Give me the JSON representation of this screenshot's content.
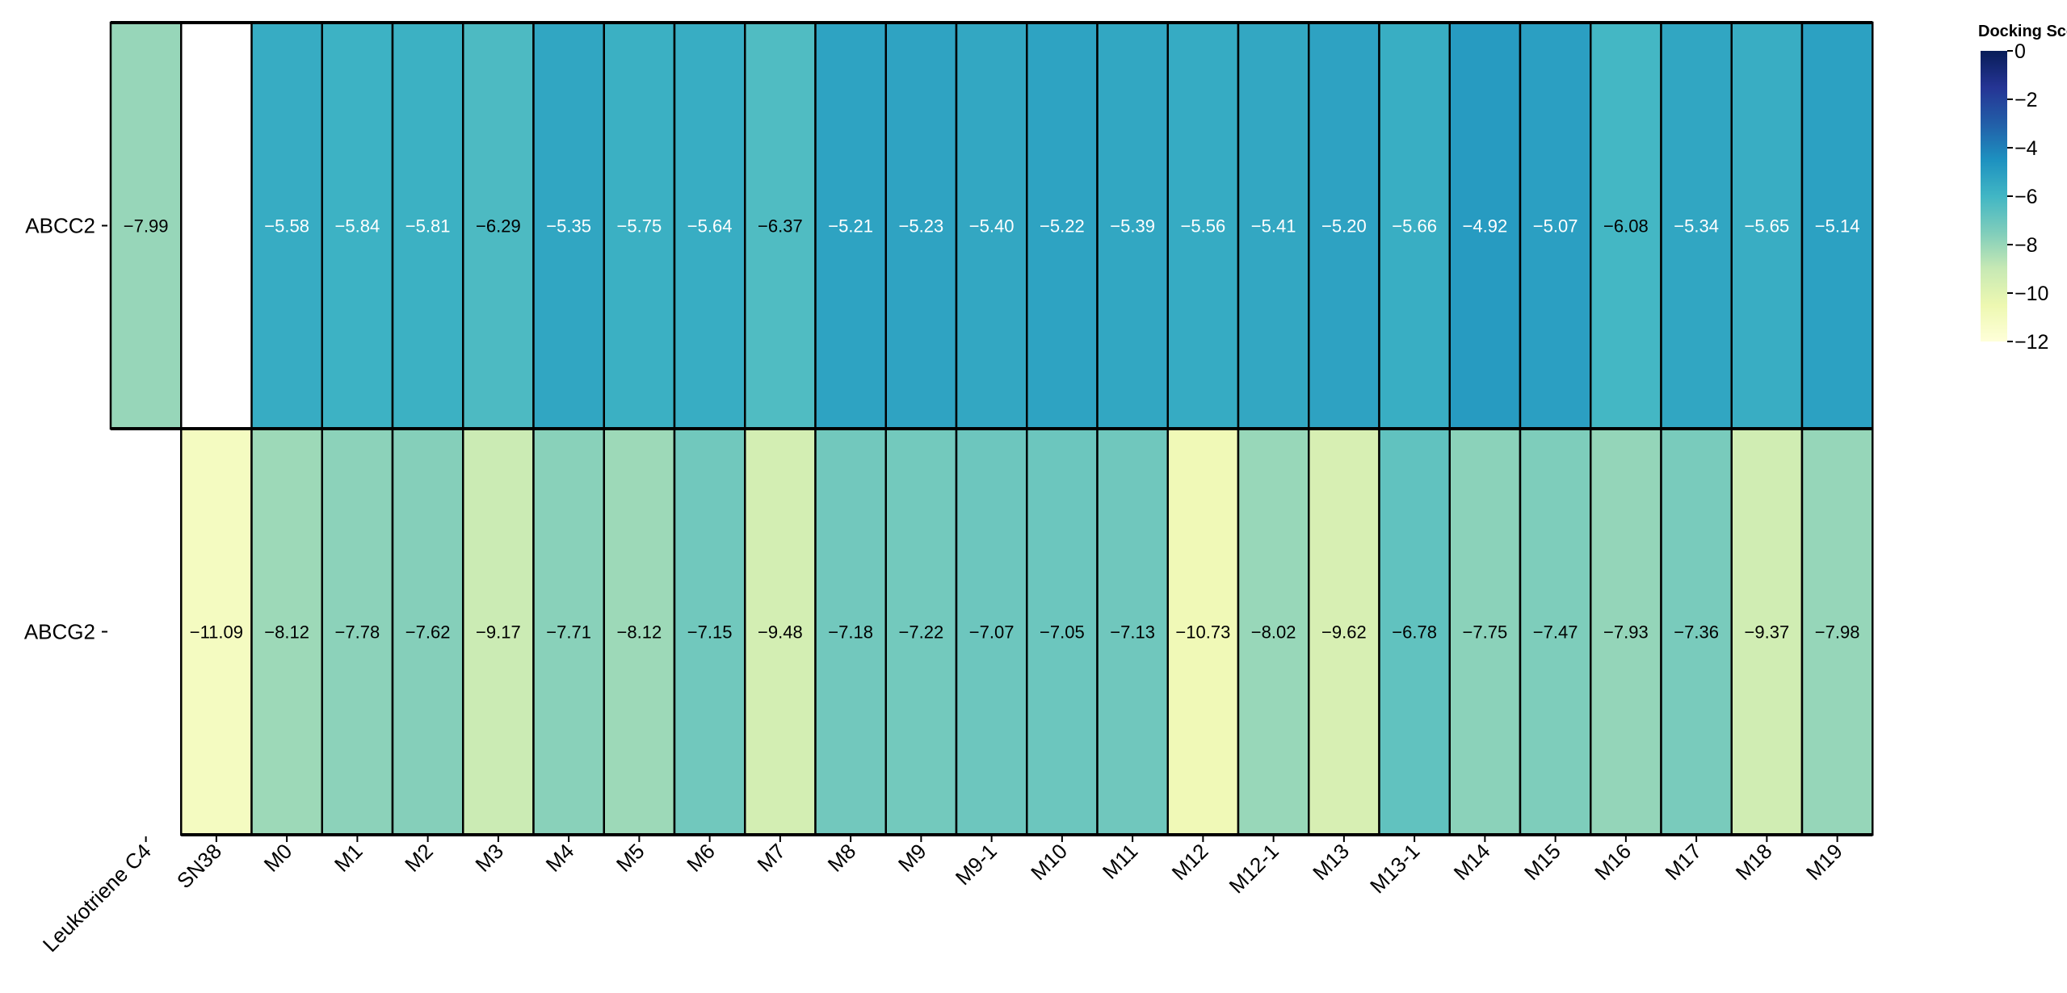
{
  "chart_data": {
    "type": "heatmap",
    "rows": [
      "ABCC2",
      "ABCG2"
    ],
    "columns": [
      "Leukotriene C4",
      "SN38",
      "M0",
      "M1",
      "M2",
      "M3",
      "M4",
      "M5",
      "M6",
      "M7",
      "M8",
      "M9",
      "M9-1",
      "M10",
      "M11",
      "M12",
      "M12-1",
      "M13",
      "M13-1",
      "M14",
      "M15",
      "M16",
      "M17",
      "M18",
      "M19"
    ],
    "values": [
      [
        -7.99,
        null,
        -5.58,
        -5.84,
        -5.81,
        -6.29,
        -5.35,
        -5.75,
        -5.64,
        -6.37,
        -5.21,
        -5.23,
        -5.4,
        -5.22,
        -5.39,
        -5.56,
        -5.41,
        -5.2,
        -5.66,
        -4.92,
        -5.07,
        -6.08,
        -5.34,
        -5.65,
        -5.14
      ],
      [
        null,
        -11.09,
        -8.12,
        -7.78,
        -7.62,
        -9.17,
        -7.71,
        -8.12,
        -7.15,
        -9.48,
        -7.18,
        -7.22,
        -7.07,
        -7.05,
        -7.13,
        -10.73,
        -8.02,
        -9.62,
        -6.78,
        -7.75,
        -7.47,
        -7.93,
        -7.36,
        -9.37,
        -7.98
      ]
    ],
    "cell_labels": [
      [
        "−7.99",
        "",
        "−5.58",
        "−5.84",
        "−5.81",
        "−6.29",
        "−5.35",
        "−5.75",
        "−5.64",
        "−6.37",
        "−5.21",
        "−5.23",
        "−5.40",
        "−5.22",
        "−5.39",
        "−5.56",
        "−5.41",
        "−5.20",
        "−5.66",
        "−4.92",
        "−5.07",
        "−6.08",
        "−5.34",
        "−5.65",
        "−5.14"
      ],
      [
        "",
        "−11.09",
        "−8.12",
        "−7.78",
        "−7.62",
        "−9.17",
        "−7.71",
        "−8.12",
        "−7.15",
        "−9.48",
        "−7.18",
        "−7.22",
        "−7.07",
        "−7.05",
        "−7.13",
        "−10.73",
        "−8.02",
        "−9.62",
        "−6.78",
        "−7.75",
        "−7.47",
        "−7.93",
        "−7.36",
        "−9.37",
        "−7.98"
      ]
    ],
    "colorbar": {
      "title": "Docking Score",
      "range": [
        -12,
        0
      ],
      "ticks": [
        0,
        -2,
        -4,
        -6,
        -8,
        -10,
        -12
      ],
      "tick_labels": [
        "0",
        "−2",
        "−4",
        "−6",
        "−8",
        "−10",
        "−12"
      ],
      "colormap": "YlGnBu",
      "colors_high_to_low": [
        "#081d58",
        "#253494",
        "#225ea8",
        "#1d91c0",
        "#41b6c4",
        "#7fcdbb",
        "#c7e9b4",
        "#edf8b1",
        "#ffffd9"
      ]
    },
    "grid": true,
    "legend_placement": "right"
  }
}
